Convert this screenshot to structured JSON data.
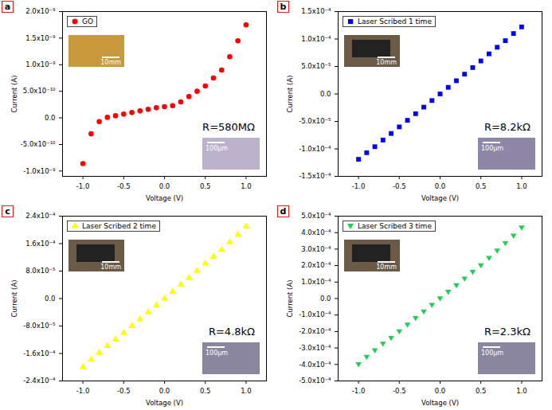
{
  "chart_data": [
    {
      "type": "scatter",
      "panel": "a",
      "xlabel": "Voltage (V)",
      "ylabel": "Current (A)",
      "legend": "top-left",
      "annotation": "R=580MΩ",
      "inset_labels": [
        "10mm",
        "100μm"
      ],
      "x": [
        -1.0,
        -0.9,
        -0.8,
        -0.7,
        -0.6,
        -0.5,
        -0.4,
        -0.3,
        -0.2,
        -0.1,
        0.0,
        0.1,
        0.2,
        0.3,
        0.4,
        0.5,
        0.6,
        0.7,
        0.8,
        0.9,
        1.0
      ],
      "series": [
        {
          "name": "GO",
          "color": "#ff0000",
          "marker": "circle",
          "values": [
            -8.6e-10,
            -3e-10,
            -7e-11,
            1e-11,
            4e-11,
            7e-11,
            1e-10,
            1.3e-10,
            1.6e-10,
            1.9e-10,
            2.1e-10,
            2.3e-10,
            3e-10,
            4e-10,
            5e-10,
            6e-10,
            7.5e-10,
            9e-10,
            1.15e-09,
            1.45e-09,
            1.75e-09
          ]
        }
      ],
      "xlim": [
        -1.25,
        1.25
      ],
      "xticks": [
        {
          "value": -1.0,
          "label": "-1.0"
        },
        {
          "value": -0.5,
          "label": "-0.5"
        },
        {
          "value": 0,
          "label": "0.0"
        },
        {
          "value": 0.5,
          "label": "0.5"
        },
        {
          "value": 1.0,
          "label": "1.0"
        }
      ],
      "ylim": [
        -1.1e-09,
        2e-09
      ],
      "yticks": [
        {
          "value": -1e-09,
          "label": "-1.0x10⁻⁹"
        },
        {
          "value": -5e-10,
          "label": "-5.0x10⁻¹⁰"
        },
        {
          "value": 0,
          "label": "0.0"
        },
        {
          "value": 5e-10,
          "label": "5.0x10⁻¹⁰"
        },
        {
          "value": 1e-09,
          "label": "1.0x10⁻⁹"
        },
        {
          "value": 1.5e-09,
          "label": "1.5x10⁻⁹"
        },
        {
          "value": 2e-09,
          "label": "2.0x10⁻⁹"
        }
      ]
    },
    {
      "type": "scatter",
      "panel": "b",
      "xlabel": "Voltage (V)",
      "ylabel": "Current (A)",
      "legend": "top-left",
      "annotation": "R=8.2kΩ",
      "inset_labels": [
        "10mm",
        "100μm"
      ],
      "x": [
        -1.0,
        -0.9,
        -0.8,
        -0.7,
        -0.6,
        -0.5,
        -0.4,
        -0.3,
        -0.2,
        -0.1,
        0.0,
        0.1,
        0.2,
        0.3,
        0.4,
        0.5,
        0.6,
        0.7,
        0.8,
        0.9,
        1.0
      ],
      "series": [
        {
          "name": "Laser Scribed 1 time",
          "color": "#0000ff",
          "marker": "square",
          "values": [
            -0.000119,
            -0.000107,
            -9.6e-05,
            -8.4e-05,
            -7.2e-05,
            -6e-05,
            -4.8e-05,
            -3.6e-05,
            -2.4e-05,
            -1.2e-05,
            0,
            1.2e-05,
            2.4e-05,
            3.6e-05,
            4.8e-05,
            6e-05,
            7.3e-05,
            8.5e-05,
            9.7e-05,
            0.00011,
            0.000122
          ]
        }
      ],
      "xlim": [
        -1.25,
        1.25
      ],
      "xticks": [
        {
          "value": -1.0,
          "label": "-1.0"
        },
        {
          "value": -0.5,
          "label": "-0.5"
        },
        {
          "value": 0,
          "label": "0.0"
        },
        {
          "value": 0.5,
          "label": "0.5"
        },
        {
          "value": 1.0,
          "label": "1.0"
        }
      ],
      "ylim": [
        -0.00015,
        0.00015
      ],
      "yticks": [
        {
          "value": -0.00015,
          "label": "-1.5x10⁻⁴"
        },
        {
          "value": -0.0001,
          "label": "-1.0x10⁻⁴"
        },
        {
          "value": -5e-05,
          "label": "-5.0x10⁻⁵"
        },
        {
          "value": 0,
          "label": "0.0"
        },
        {
          "value": 5e-05,
          "label": "5.0x10⁻⁵"
        },
        {
          "value": 0.0001,
          "label": "1.0x10⁻⁴"
        },
        {
          "value": 0.00015,
          "label": "1.5x10⁻⁴"
        }
      ]
    },
    {
      "type": "scatter",
      "panel": "c",
      "xlabel": "Voltage (V)",
      "ylabel": "Current (A)",
      "legend": "top-left",
      "annotation": "R=4.8kΩ",
      "inset_labels": [
        "10mm",
        "100μm"
      ],
      "x": [
        -1.0,
        -0.9,
        -0.8,
        -0.7,
        -0.6,
        -0.5,
        -0.4,
        -0.3,
        -0.2,
        -0.1,
        0.0,
        0.1,
        0.2,
        0.3,
        0.4,
        0.5,
        0.6,
        0.7,
        0.8,
        0.9,
        1.0
      ],
      "series": [
        {
          "name": "Laser Scribed 2 time",
          "color": "#ffff00",
          "marker": "triangle-up",
          "values": [
            -0.0002,
            -0.000178,
            -0.000158,
            -0.000138,
            -0.000119,
            -0.0001,
            -8e-05,
            -6e-05,
            -4e-05,
            -2e-05,
            0,
            2e-05,
            4e-05,
            6e-05,
            8.1e-05,
            0.000102,
            0.000122,
            0.000142,
            0.000164,
            0.000186,
            0.00021
          ]
        }
      ],
      "xlim": [
        -1.25,
        1.25
      ],
      "xticks": [
        {
          "value": -1.0,
          "label": "-1.0"
        },
        {
          "value": -0.5,
          "label": "-0.5"
        },
        {
          "value": 0,
          "label": "0.0"
        },
        {
          "value": 0.5,
          "label": "0.5"
        },
        {
          "value": 1.0,
          "label": "1.0"
        }
      ],
      "ylim": [
        -0.00024,
        0.00024
      ],
      "yticks": [
        {
          "value": -0.00024,
          "label": "-2.4x10⁻⁴"
        },
        {
          "value": -0.00016,
          "label": "-1.6x10⁻⁴"
        },
        {
          "value": -8e-05,
          "label": "-8.0x10⁻⁵"
        },
        {
          "value": 0,
          "label": "0.0"
        },
        {
          "value": 8e-05,
          "label": "8.0x10⁻⁵"
        },
        {
          "value": 0.00016,
          "label": "1.6x10⁻⁴"
        },
        {
          "value": 0.00024,
          "label": "2.4x10⁻⁴"
        }
      ]
    },
    {
      "type": "scatter",
      "panel": "d",
      "xlabel": "Voltage (V)",
      "ylabel": "Current (A)",
      "legend": "top-left",
      "annotation": "R=2.3kΩ",
      "inset_labels": [
        "10mm",
        "100μm"
      ],
      "x": [
        -1.0,
        -0.9,
        -0.8,
        -0.7,
        -0.6,
        -0.5,
        -0.4,
        -0.3,
        -0.2,
        -0.1,
        0.0,
        0.1,
        0.2,
        0.3,
        0.4,
        0.5,
        0.6,
        0.7,
        0.8,
        0.9,
        1.0
      ],
      "series": [
        {
          "name": "Laser Scribed 3 time",
          "color": "#22cc55",
          "marker": "triangle-down",
          "values": [
            -0.0004,
            -0.000355,
            -0.000315,
            -0.000275,
            -0.00024,
            -0.0002,
            -0.00016,
            -0.00012,
            -8e-05,
            -4e-05,
            0,
            4e-05,
            8e-05,
            0.00012,
            0.00016,
            0.0002,
            0.000245,
            0.00029,
            0.000335,
            0.00038,
            0.00043
          ]
        }
      ],
      "xlim": [
        -1.25,
        1.25
      ],
      "xticks": [
        {
          "value": -1.0,
          "label": "-1.0"
        },
        {
          "value": -0.5,
          "label": "-0.5"
        },
        {
          "value": 0,
          "label": "0.0"
        },
        {
          "value": 0.5,
          "label": "0.5"
        },
        {
          "value": 1.0,
          "label": "1.0"
        }
      ],
      "ylim": [
        -0.0005,
        0.0005
      ],
      "yticks": [
        {
          "value": -0.0005,
          "label": "-5.0x10⁻⁴"
        },
        {
          "value": -0.0004,
          "label": "-4.0x10⁻⁴"
        },
        {
          "value": -0.0003,
          "label": "-3.0x10⁻⁴"
        },
        {
          "value": -0.0002,
          "label": "-2.0x10⁻⁴"
        },
        {
          "value": -0.0001,
          "label": "-1.0x10⁻⁴"
        },
        {
          "value": 0,
          "label": "0.0"
        },
        {
          "value": 0.0001,
          "label": "1.0x10⁻⁴"
        },
        {
          "value": 0.0002,
          "label": "2.0x10⁻⁴"
        },
        {
          "value": 0.0003,
          "label": "3.0x10⁻⁴"
        },
        {
          "value": 0.0004,
          "label": "4.0x10⁻⁴"
        },
        {
          "value": 0.0005,
          "label": "5.0x10⁻⁴"
        }
      ]
    }
  ]
}
